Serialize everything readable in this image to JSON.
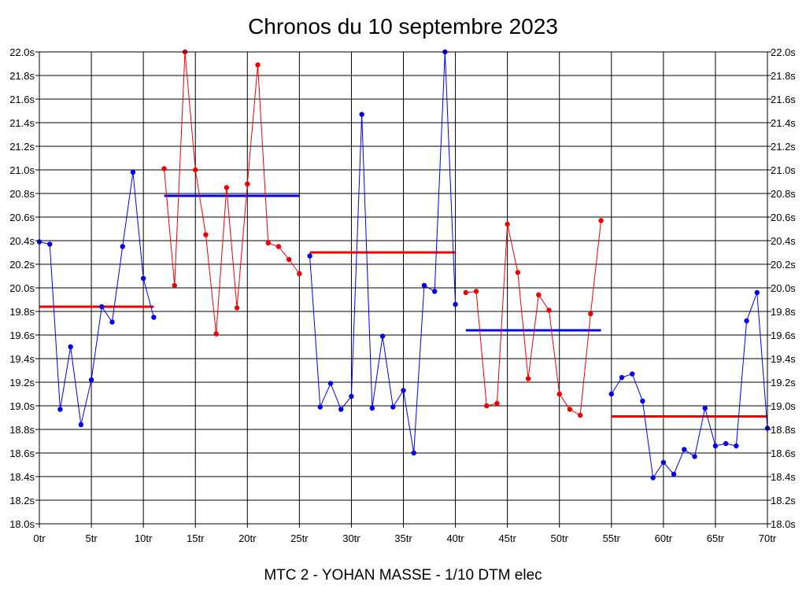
{
  "chart_data": {
    "type": "line",
    "title": "Chronos du 10 septembre 2023",
    "subtitle": "MTC 2 - YOHAN MASSE - 1/10 DTM elec",
    "xlim": [
      0,
      70
    ],
    "ylim": [
      18.0,
      22.0
    ],
    "x_ticks": [
      0,
      5,
      10,
      15,
      20,
      25,
      30,
      35,
      40,
      45,
      50,
      55,
      60,
      65,
      70
    ],
    "x_tick_labels": [
      "0tr",
      "5tr",
      "10tr",
      "15tr",
      "20tr",
      "25tr",
      "30tr",
      "35tr",
      "40tr",
      "45tr",
      "50tr",
      "55tr",
      "60tr",
      "65tr",
      "70tr"
    ],
    "y_ticks": [
      18.0,
      18.2,
      18.4,
      18.6,
      18.8,
      19.0,
      19.2,
      19.4,
      19.6,
      19.8,
      20.0,
      20.2,
      20.4,
      20.6,
      20.8,
      21.0,
      21.2,
      21.4,
      21.6,
      21.8,
      22.0
    ],
    "y_tick_labels": [
      "18.0s",
      "18.2s",
      "18.4s",
      "18.6s",
      "18.8s",
      "19.0s",
      "19.2s",
      "19.4s",
      "19.6s",
      "19.8s",
      "20.0s",
      "20.2s",
      "20.4s",
      "20.6s",
      "20.8s",
      "21.0s",
      "21.2s",
      "21.4s",
      "21.6s",
      "21.8s",
      "22.0s"
    ],
    "grid": true,
    "y_axis_both_sides": true,
    "series": [
      {
        "color": "#0000ee",
        "points": [
          [
            0,
            20.39
          ],
          [
            1,
            20.37
          ],
          [
            2,
            18.97
          ],
          [
            3,
            19.5
          ],
          [
            4,
            18.84
          ],
          [
            5,
            19.22
          ],
          [
            6,
            19.84
          ],
          [
            7,
            19.71
          ],
          [
            8,
            20.35
          ],
          [
            9,
            20.98
          ],
          [
            10,
            20.08
          ],
          [
            11,
            19.75
          ]
        ]
      },
      {
        "color": "#ee0000",
        "points": [
          [
            12,
            21.01
          ],
          [
            13,
            20.02
          ],
          [
            14,
            22.0
          ],
          [
            15,
            21.0
          ],
          [
            16,
            20.45
          ],
          [
            17,
            19.61
          ],
          [
            18,
            20.85
          ],
          [
            19,
            19.83
          ],
          [
            20,
            20.88
          ],
          [
            21,
            21.89
          ],
          [
            22,
            20.38
          ],
          [
            23,
            20.35
          ],
          [
            24,
            20.24
          ],
          [
            25,
            20.12
          ]
        ]
      },
      {
        "color": "#0000ee",
        "points": [
          [
            26,
            20.27
          ],
          [
            27,
            18.99
          ],
          [
            28,
            19.19
          ],
          [
            29,
            18.97
          ],
          [
            30,
            19.08
          ],
          [
            31,
            21.47
          ],
          [
            32,
            18.98
          ],
          [
            33,
            19.59
          ],
          [
            34,
            18.99
          ],
          [
            35,
            19.13
          ],
          [
            36,
            18.6
          ],
          [
            37,
            20.02
          ],
          [
            38,
            19.97
          ],
          [
            39,
            22.0
          ],
          [
            40,
            19.86
          ]
        ]
      },
      {
        "color": "#ee0000",
        "points": [
          [
            41,
            19.96
          ],
          [
            42,
            19.97
          ],
          [
            43,
            19.0
          ],
          [
            44,
            19.02
          ],
          [
            45,
            20.54
          ],
          [
            46,
            20.13
          ],
          [
            47,
            19.23
          ],
          [
            48,
            19.94
          ],
          [
            49,
            19.81
          ],
          [
            50,
            19.1
          ],
          [
            51,
            18.97
          ],
          [
            52,
            18.92
          ],
          [
            53,
            19.78
          ],
          [
            54,
            20.57
          ]
        ]
      },
      {
        "color": "#0000ee",
        "points": [
          [
            55,
            19.1
          ],
          [
            56,
            19.24
          ],
          [
            57,
            19.27
          ],
          [
            58,
            19.04
          ],
          [
            59,
            18.39
          ],
          [
            60,
            18.52
          ],
          [
            61,
            18.42
          ],
          [
            62,
            18.63
          ],
          [
            63,
            18.57
          ],
          [
            64,
            18.98
          ],
          [
            65,
            18.66
          ],
          [
            66,
            18.68
          ],
          [
            67,
            18.66
          ],
          [
            68,
            19.72
          ],
          [
            69,
            19.96
          ],
          [
            70,
            18.81
          ]
        ]
      }
    ],
    "average_lines": [
      {
        "color": "#ee0000",
        "x": [
          0,
          11
        ],
        "y": 19.84
      },
      {
        "color": "#0000ee",
        "x": [
          12,
          25
        ],
        "y": 20.78
      },
      {
        "color": "#ee0000",
        "x": [
          26,
          40
        ],
        "y": 20.3
      },
      {
        "color": "#0000ee",
        "x": [
          41,
          54
        ],
        "y": 19.64
      },
      {
        "color": "#ee0000",
        "x": [
          55,
          70
        ],
        "y": 18.91
      }
    ]
  }
}
